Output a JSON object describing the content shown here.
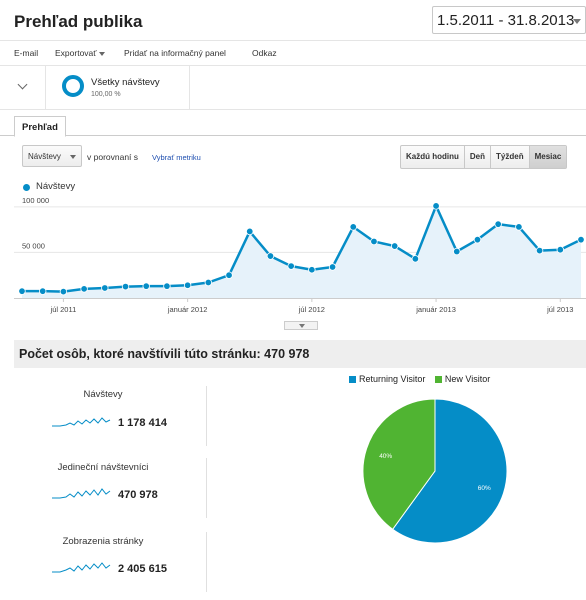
{
  "header": {
    "title": "Prehľad publika",
    "date_range": "1.5.2011 - 31.8.2013"
  },
  "toolbar": {
    "email": "E-mail",
    "export": "Exportovať",
    "add_to_dashboard": "Pridať na informačný panel",
    "shortcut": "Odkaz"
  },
  "segment": {
    "name": "Všetky návštevy",
    "percent": "100,00 %"
  },
  "tabs": {
    "overview": "Prehľad"
  },
  "controls": {
    "metric": "Návštevy",
    "compare_label": "v porovnaní s",
    "pick_metric": "Vybrať metriku",
    "periods": [
      "Každú hodinu",
      "Deň",
      "Týždeň",
      "Mesiac"
    ],
    "active_period": "Mesiac"
  },
  "colors": {
    "series": "#058dc7",
    "returning": "#058dc7",
    "new": "#50b432",
    "summary_bg": "#eeeeee"
  },
  "chart_data": [
    {
      "type": "area",
      "series": [
        {
          "name": "Návštevy",
          "values": [
            7500,
            7500,
            7000,
            10000,
            11000,
            12500,
            13000,
            13000,
            14000,
            17000,
            25000,
            73000,
            46000,
            35000,
            31000,
            34000,
            78000,
            62000,
            57000,
            43000,
            101000,
            51000,
            64000,
            81000,
            78000,
            52000,
            53000,
            64000
          ]
        }
      ],
      "x_labels": [
        "júl 2011",
        "január 2012",
        "júl 2012",
        "január 2013",
        "júl 2013"
      ],
      "x_label_index": [
        2,
        8,
        14,
        20,
        26
      ],
      "y_ticks": [
        {
          "value": 50000,
          "label": "50 000"
        },
        {
          "value": 100000,
          "label": "100 000"
        }
      ],
      "ylim": [
        0,
        113000
      ],
      "grid": true,
      "legend": "top-left"
    },
    {
      "type": "pie",
      "series": [
        {
          "name": "Returning Visitor",
          "value": 60,
          "label": "60%"
        },
        {
          "name": "New Visitor",
          "value": 40,
          "label": "40%"
        }
      ],
      "legend": "top"
    }
  ],
  "summary": {
    "title": "Počet osôb, ktoré navštívili túto stránku: 470 978",
    "metrics": [
      {
        "name": "Návštevy",
        "value": "1 178 414"
      },
      {
        "name": "Jedineční návštevníci",
        "value": "470 978"
      },
      {
        "name": "Zobrazenia stránky",
        "value": "2 405 615"
      }
    ]
  }
}
